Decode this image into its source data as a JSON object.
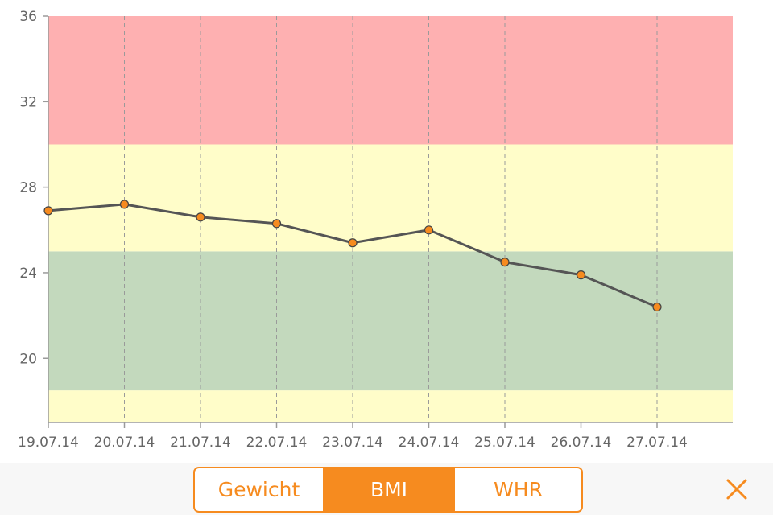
{
  "chart_data": {
    "type": "line",
    "categories": [
      "19.07.14",
      "20.07.14",
      "21.07.14",
      "22.07.14",
      "23.07.14",
      "24.07.14",
      "25.07.14",
      "26.07.14",
      "27.07.14"
    ],
    "series": [
      {
        "values": [
          26.9,
          27.2,
          26.6,
          26.3,
          25.4,
          26.0,
          24.5,
          23.9,
          22.4
        ]
      }
    ],
    "yticks": [
      "20",
      "24",
      "28",
      "32",
      "36"
    ],
    "ylim": [
      17,
      36
    ],
    "bands": [
      {
        "from": 17,
        "to": 18.5,
        "color": "#fffdc9"
      },
      {
        "from": 18.5,
        "to": 25,
        "color": "#c3d9bd"
      },
      {
        "from": 25,
        "to": 30,
        "color": "#fffdc9"
      },
      {
        "from": 30,
        "to": 36,
        "color": "#feb0b1"
      }
    ],
    "line_color": "#555555",
    "marker_color": "#f68b1f",
    "grid": "vertical dashed"
  },
  "tabs": {
    "items": [
      {
        "label": "Gewicht",
        "active": false
      },
      {
        "label": "BMI",
        "active": true
      },
      {
        "label": "WHR",
        "active": false
      }
    ],
    "accent": "#f68b1f"
  },
  "close": {
    "icon": "close-icon",
    "color": "#f68b1f"
  }
}
